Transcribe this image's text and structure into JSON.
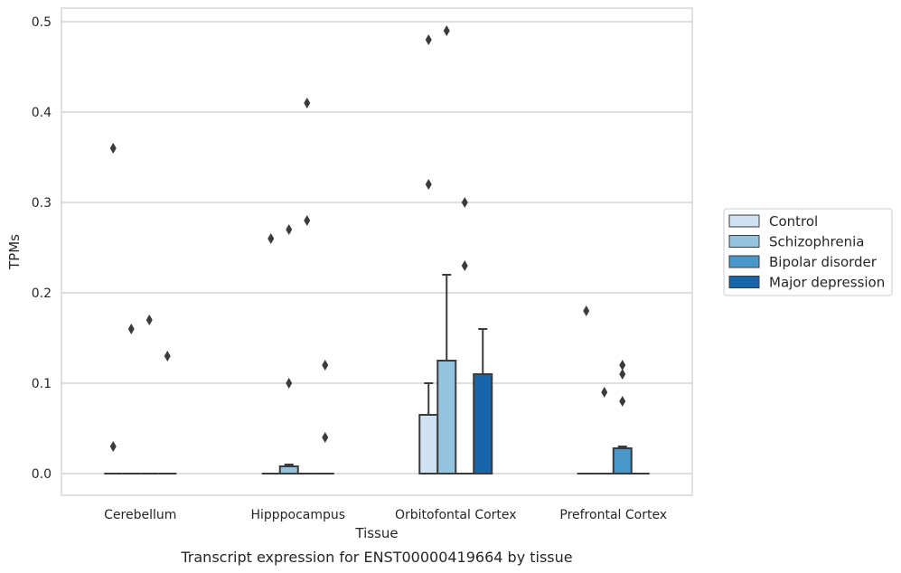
{
  "caption": "Transcript expression for ENST00000419664 by tissue",
  "chart_data": {
    "type": "bar",
    "xlabel": "Tissue",
    "ylabel": "TPMs",
    "ylim": [
      -0.024,
      0.515
    ],
    "yticks": [
      "0.0",
      "0.1",
      "0.2",
      "0.3",
      "0.4",
      "0.5"
    ],
    "ytick_values": [
      0.0,
      0.1,
      0.2,
      0.3,
      0.4,
      0.5
    ],
    "grid": true,
    "legend_position": "center-right",
    "categories": [
      "Cerebellum",
      "Hipppocampus",
      "Orbitofontal Cortex",
      "Prefrontal Cortex"
    ],
    "series": [
      {
        "name": "Control",
        "color": "#d0e1f2",
        "values": [
          0.0,
          0.0,
          0.065,
          0.0
        ],
        "whisker_high": [
          0.0,
          0.0,
          0.1,
          0.0
        ],
        "outliers": [
          [
            0.03,
            0.36
          ],
          [
            0.26
          ],
          [
            0.32,
            0.48
          ],
          [
            0.18
          ]
        ]
      },
      {
        "name": "Schizophrenia",
        "color": "#94c4df",
        "values": [
          0.0,
          0.008,
          0.125,
          0.0
        ],
        "whisker_high": [
          0.0,
          0.01,
          0.22,
          0.0
        ],
        "outliers": [
          [
            0.16
          ],
          [
            0.1,
            0.27
          ],
          [
            0.49
          ],
          [
            0.09
          ]
        ]
      },
      {
        "name": "Bipolar disorder",
        "color": "#4a98c9",
        "values": [
          0.0,
          0.0,
          0.0,
          0.028
        ],
        "whisker_high": [
          0.0,
          0.0,
          0.0,
          0.03
        ],
        "outliers": [
          [
            0.17
          ],
          [
            0.28,
            0.41
          ],
          [
            0.23,
            0.3
          ],
          [
            0.08,
            0.11,
            0.12
          ]
        ]
      },
      {
        "name": "Major depression",
        "color": "#1764ab",
        "values": [
          0.0,
          0.0,
          0.11,
          0.0
        ],
        "whisker_high": [
          0.0,
          0.0,
          0.16,
          0.0
        ],
        "outliers": [
          [
            0.13
          ],
          [
            0.04,
            0.12
          ],
          [],
          []
        ]
      }
    ]
  }
}
